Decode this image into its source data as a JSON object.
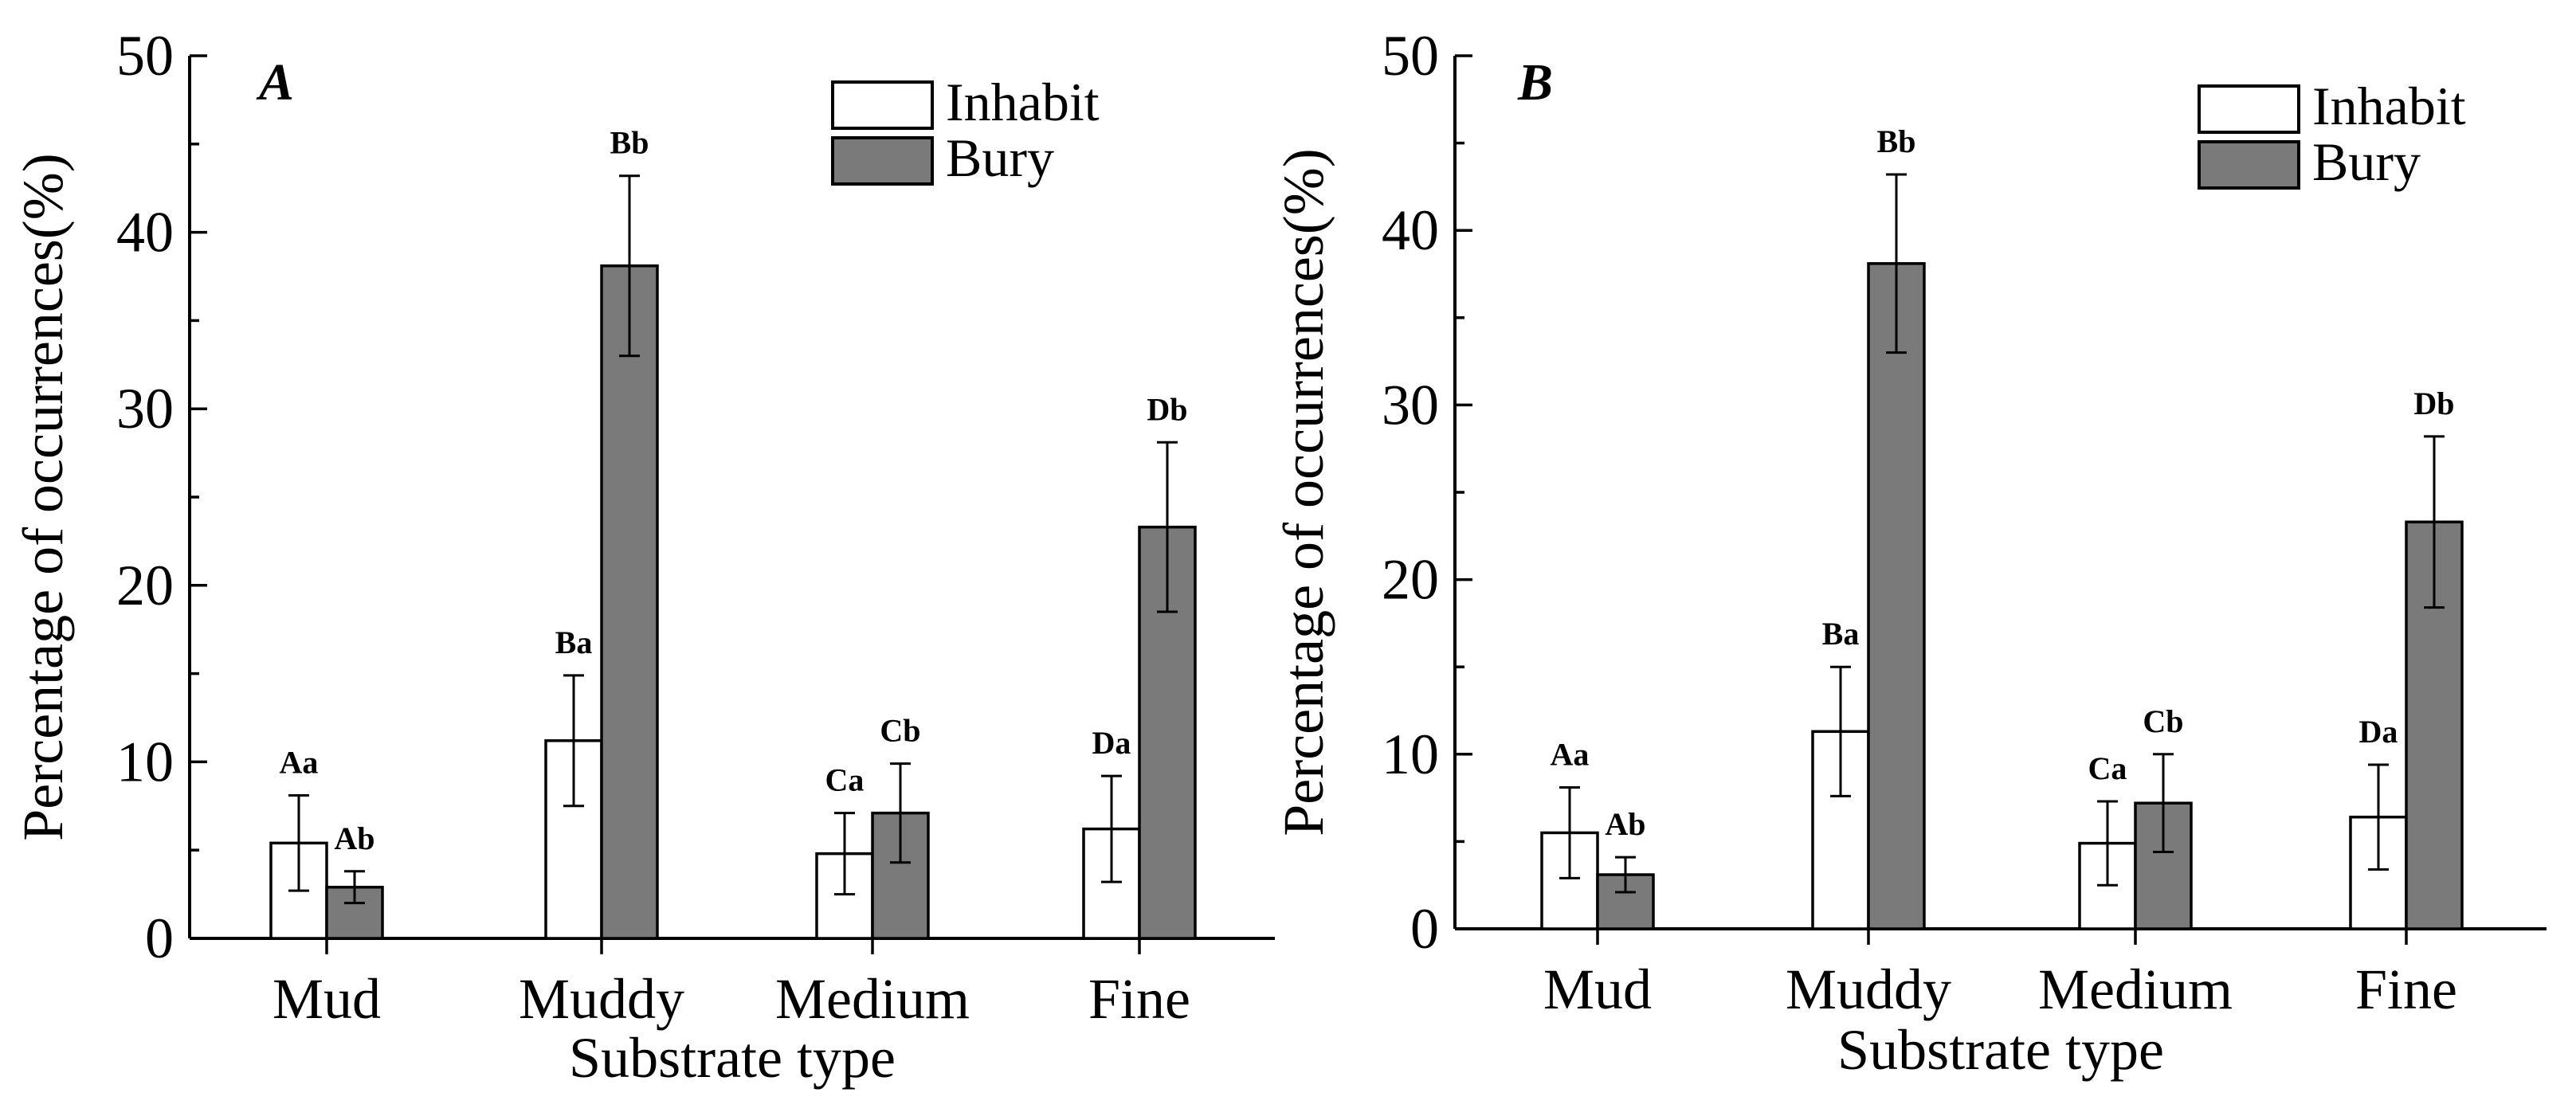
{
  "colors": {
    "inhabit_fill": "#ffffff",
    "bury_fill": "#7a7a7a",
    "stroke": "#000000"
  },
  "chart_data": [
    {
      "type": "bar",
      "panel_label": "A",
      "xlabel": "Substrate type",
      "ylabel": "Percentage of occurrences(%)",
      "ylim": [
        0,
        50
      ],
      "yticks": [
        0,
        10,
        20,
        30,
        40,
        50
      ],
      "categories": [
        "Mud",
        "Muddy",
        "Medium",
        "Fine"
      ],
      "legend_position": "top-right",
      "series": [
        {
          "name": "Inhabit",
          "values": [
            5.4,
            11.2,
            4.8,
            6.2
          ],
          "errors": [
            2.7,
            3.7,
            2.3,
            3.0
          ],
          "labels": [
            "Aa",
            "Ba",
            "Ca",
            "Da"
          ]
        },
        {
          "name": "Bury",
          "values": [
            2.9,
            38.1,
            7.1,
            23.3
          ],
          "errors": [
            0.9,
            5.1,
            2.8,
            4.8
          ],
          "labels": [
            "Ab",
            "Bb",
            "Cb",
            "Db"
          ]
        }
      ]
    },
    {
      "type": "bar",
      "panel_label": "B",
      "xlabel": "Substrate type",
      "ylabel": "Percentage of occurrences(%)",
      "ylim": [
        0,
        50
      ],
      "yticks": [
        0,
        10,
        20,
        30,
        40,
        50
      ],
      "categories": [
        "Mud",
        "Muddy",
        "Medium",
        "Fine"
      ],
      "legend_position": "top-right",
      "series": [
        {
          "name": "Inhabit",
          "values": [
            5.5,
            11.3,
            4.9,
            6.4
          ],
          "errors": [
            2.6,
            3.7,
            2.4,
            3.0
          ],
          "labels": [
            "Aa",
            "Ba",
            "Ca",
            "Da"
          ]
        },
        {
          "name": "Bury",
          "values": [
            3.1,
            38.1,
            7.2,
            23.3
          ],
          "errors": [
            1.0,
            5.1,
            2.8,
            4.9
          ],
          "labels": [
            "Ab",
            "Bb",
            "Cb",
            "Db"
          ]
        }
      ]
    }
  ]
}
